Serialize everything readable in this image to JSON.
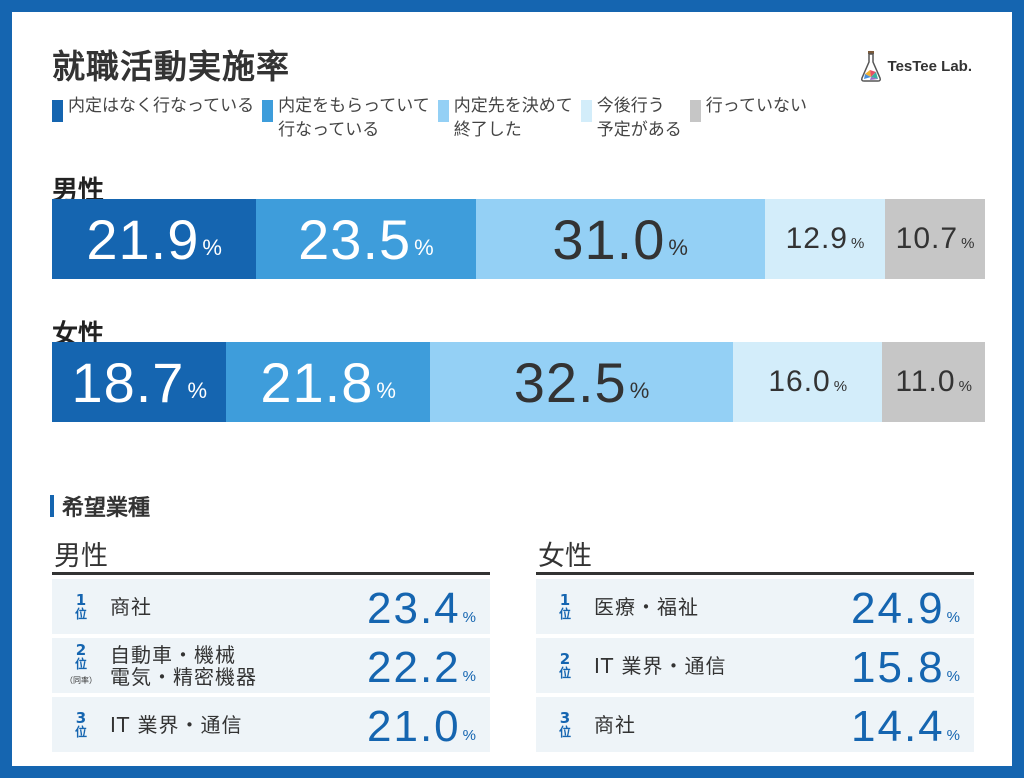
{
  "title": "就職活動実施率",
  "brand": {
    "name": "TesTee Lab."
  },
  "chart_data": {
    "type": "bar",
    "stacked": true,
    "orientation": "horizontal",
    "categories": [
      "男性",
      "女性"
    ],
    "series": [
      {
        "name": "内定はなく行なっている",
        "color": "#1565b0",
        "values": [
          21.9,
          18.7
        ]
      },
      {
        "name": "内定をもらっていて\n行なっている",
        "color": "#3e9ddb",
        "values": [
          23.5,
          21.8
        ]
      },
      {
        "name": "内定先を決めて\n終了した",
        "color": "#94d0f5",
        "values": [
          31.0,
          32.5
        ]
      },
      {
        "name": "今後行う\n予定がある",
        "color": "#d3edfa",
        "values": [
          12.9,
          16.0
        ]
      },
      {
        "name": "行っていない",
        "color": "#c6c6c6",
        "values": [
          10.7,
          11.0
        ]
      }
    ],
    "unit": "%"
  },
  "industry": {
    "title": "希望業種",
    "unit": "%",
    "rank_suffix": "位",
    "tie_note": "（同率）",
    "columns": [
      {
        "label": "男性",
        "rows": [
          {
            "rank": "1",
            "name": "商社",
            "value": "23.4"
          },
          {
            "rank": "2",
            "name": "自動車・機械\n電気・精密機器",
            "value": "22.2",
            "tie": true
          },
          {
            "rank": "3",
            "name": "IT 業界・通信",
            "value": "21.0"
          }
        ]
      },
      {
        "label": "女性",
        "rows": [
          {
            "rank": "1",
            "name": "医療・福祉",
            "value": "24.9"
          },
          {
            "rank": "2",
            "name": "IT 業界・通信",
            "value": "15.8"
          },
          {
            "rank": "3",
            "name": "商社",
            "value": "14.4"
          }
        ]
      }
    ]
  }
}
